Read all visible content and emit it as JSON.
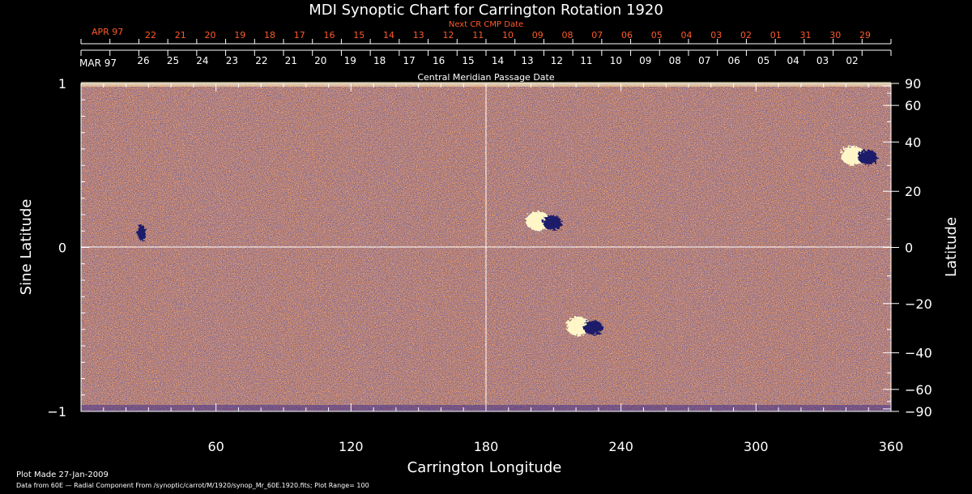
{
  "chart_data": {
    "type": "heatmap",
    "title": "MDI Synoptic Chart for Carrington Rotation 1920",
    "xlabel": "Carrington Longitude",
    "ylabel_left": "Sine Latitude",
    "ylabel_right": "Latitude",
    "xlim": [
      0,
      360
    ],
    "x_ticks": [
      60,
      120,
      180,
      240,
      300,
      360
    ],
    "left_ylim": [
      -1,
      1
    ],
    "left_ticks": [
      {
        "value": 1,
        "label": "1"
      },
      {
        "value": 0,
        "label": "0"
      },
      {
        "value": -1,
        "label": "−1"
      }
    ],
    "right_ticks": [
      90,
      60,
      40,
      20,
      0,
      -20,
      -40,
      -60,
      -90
    ],
    "right_tick_labels": [
      "90",
      "60",
      "40",
      "20",
      "0",
      "−20",
      "−40",
      "−60",
      "−90"
    ],
    "next_cr_axis": {
      "caption": "Next CR CMP Date",
      "month_label": "APR 97",
      "days": [
        "22",
        "21",
        "20",
        "19",
        "18",
        "17",
        "16",
        "15",
        "14",
        "13",
        "12",
        "11",
        "10",
        "09",
        "08",
        "07",
        "06",
        "05",
        "04",
        "03",
        "02",
        "01",
        "31",
        "30",
        "29"
      ]
    },
    "cmp_axis": {
      "caption": "Central Meridian Passage Date",
      "month_label": "MAR 97",
      "days": [
        "26",
        "25",
        "24",
        "23",
        "22",
        "21",
        "20",
        "19",
        "18",
        "17",
        "16",
        "15",
        "14",
        "13",
        "12",
        "11",
        "10",
        "09",
        "08",
        "07",
        "06",
        "05",
        "04",
        "03",
        "02"
      ]
    },
    "active_regions": [
      {
        "longitude": 206,
        "sine_latitude": 0.16,
        "polarity": "bipolar"
      },
      {
        "longitude": 224,
        "sine_latitude": -0.48,
        "polarity": "bipolar"
      },
      {
        "longitude": 346,
        "sine_latitude": 0.56,
        "polarity": "bipolar"
      },
      {
        "longitude": 27,
        "sine_latitude": 0.09,
        "polarity": "negative"
      }
    ],
    "grid": "crosshair at longitude 180 and latitude 0",
    "colors": {
      "background": "#000000",
      "field_base": "#e8521a",
      "positive": "#fff6c8",
      "negative": "#1a1a6a",
      "next_cr_text": "#ff5a2a",
      "axis": "#ffffff"
    }
  },
  "footer": {
    "plot_made": "Plot Made 27-Jan-2009",
    "source": "Data from 60E — Radial Component From /synoptic/carrot/M/1920/synop_Mr_60E.1920.fits; Plot Range= 100"
  }
}
